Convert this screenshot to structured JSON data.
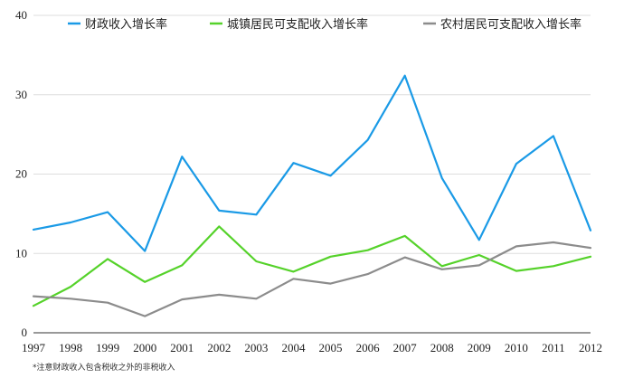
{
  "chart_data": {
    "type": "line",
    "categories": [
      "1997",
      "1998",
      "1999",
      "2000",
      "2001",
      "2002",
      "2003",
      "2004",
      "2005",
      "2006",
      "2007",
      "2008",
      "2009",
      "2010",
      "2011",
      "2012"
    ],
    "series": [
      {
        "name": "财政收入增长率",
        "color": "#1a9ae6",
        "values": [
          13.0,
          13.9,
          15.2,
          10.3,
          22.2,
          15.4,
          14.9,
          21.4,
          19.8,
          24.3,
          32.4,
          19.5,
          11.7,
          21.3,
          24.8,
          12.9
        ]
      },
      {
        "name": "城镇居民可支配收入增长率",
        "color": "#55d22a",
        "values": [
          3.4,
          5.8,
          9.3,
          6.4,
          8.5,
          13.4,
          9.0,
          7.7,
          9.6,
          10.4,
          12.2,
          8.4,
          9.8,
          7.8,
          8.4,
          9.6
        ]
      },
      {
        "name": "农村居民可支配收入增长率",
        "color": "#8c8c8c",
        "values": [
          4.6,
          4.3,
          3.8,
          2.1,
          4.2,
          4.8,
          4.3,
          6.8,
          6.2,
          7.4,
          9.5,
          8.0,
          8.5,
          10.9,
          11.4,
          10.7
        ]
      }
    ],
    "ylim": [
      0,
      40
    ],
    "yticks": [
      0,
      10,
      20,
      30,
      40
    ],
    "grid": "horizontal",
    "legend": "top",
    "footnote": "*注意财政收入包含税收之外的非税收入"
  }
}
